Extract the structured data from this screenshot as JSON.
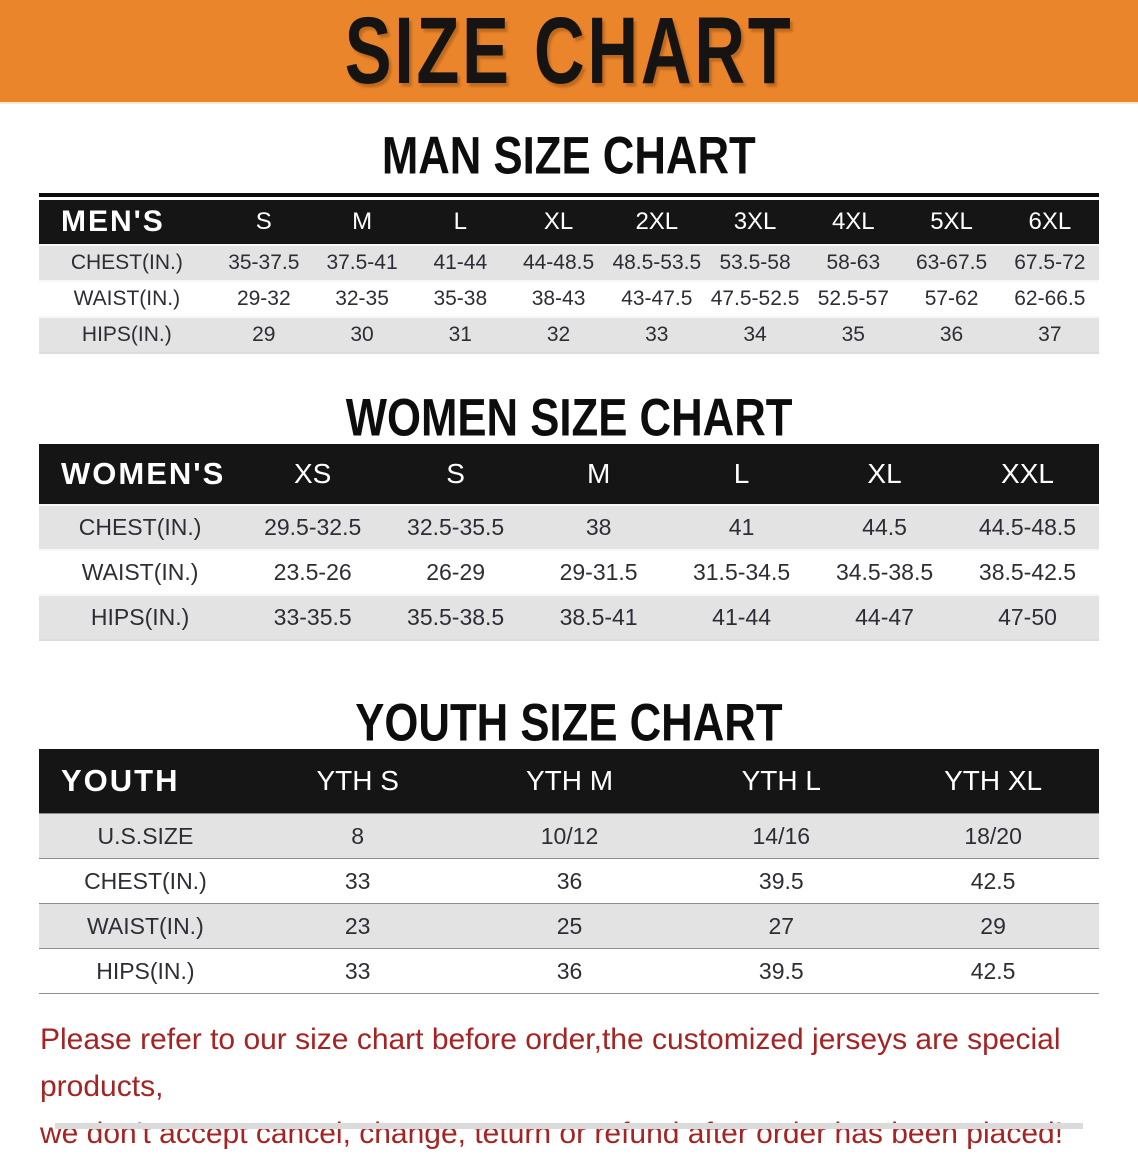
{
  "banner": {
    "title": "SIZE CHART",
    "bg_color": "#EA852C"
  },
  "colors": {
    "table_header_bg": "#151515",
    "row_shaded_bg": "#E3E3E4",
    "row_plain_bg": "#FFFFFF",
    "footer_text": "#A62323"
  },
  "sections": [
    {
      "title": "MAN SIZE CHART",
      "table": {
        "label": "MEN'S",
        "sizes": [
          "S",
          "M",
          "L",
          "XL",
          "2XL",
          "3XL",
          "4XL",
          "5XL",
          "6XL"
        ],
        "rows": [
          {
            "label": "CHEST(IN.)",
            "values": [
              "35-37.5",
              "37.5-41",
              "41-44",
              "44-48.5",
              "48.5-53.5",
              "53.5-58",
              "58-63",
              "63-67.5",
              "67.5-72"
            ]
          },
          {
            "label": "WAIST(IN.)",
            "values": [
              "29-32",
              "32-35",
              "35-38",
              "38-43",
              "43-47.5",
              "47.5-52.5",
              "52.5-57",
              "57-62",
              "62-66.5"
            ]
          },
          {
            "label": "HIPS(IN.)",
            "values": [
              "29",
              "30",
              "31",
              "32",
              "33",
              "34",
              "35",
              "36",
              "37"
            ]
          }
        ]
      }
    },
    {
      "title": "WOMEN SIZE CHART",
      "table": {
        "label": "WOMEN'S",
        "sizes": [
          "XS",
          "S",
          "M",
          "L",
          "XL",
          "XXL"
        ],
        "rows": [
          {
            "label": "CHEST(IN.)",
            "values": [
              "29.5-32.5",
              "32.5-35.5",
              "38",
              "41",
              "44.5",
              "44.5-48.5"
            ]
          },
          {
            "label": "WAIST(IN.)",
            "values": [
              "23.5-26",
              "26-29",
              "29-31.5",
              "31.5-34.5",
              "34.5-38.5",
              "38.5-42.5"
            ]
          },
          {
            "label": "HIPS(IN.)",
            "values": [
              "33-35.5",
              "35.5-38.5",
              "38.5-41",
              "41-44",
              "44-47",
              "47-50"
            ]
          }
        ]
      }
    },
    {
      "title": "YOUTH SIZE CHART",
      "table": {
        "label": "YOUTH",
        "sizes": [
          "YTH S",
          "YTH M",
          "YTH L",
          "YTH XL"
        ],
        "rows": [
          {
            "label": "U.S.SIZE",
            "values": [
              "8",
              "10/12",
              "14/16",
              "18/20"
            ]
          },
          {
            "label": "CHEST(IN.)",
            "values": [
              "33",
              "36",
              "39.5",
              "42.5"
            ]
          },
          {
            "label": "WAIST(IN.)",
            "values": [
              "23",
              "25",
              "27",
              "29"
            ]
          },
          {
            "label": "HIPS(IN.)",
            "values": [
              "33",
              "36",
              "39.5",
              "42.5"
            ]
          }
        ]
      }
    }
  ],
  "footer": {
    "line1": "Please refer to our size chart before order,the customized jerseys are special products,",
    "line2": "we don't accept cancel, change, teturn or refund after order has been placed!"
  }
}
